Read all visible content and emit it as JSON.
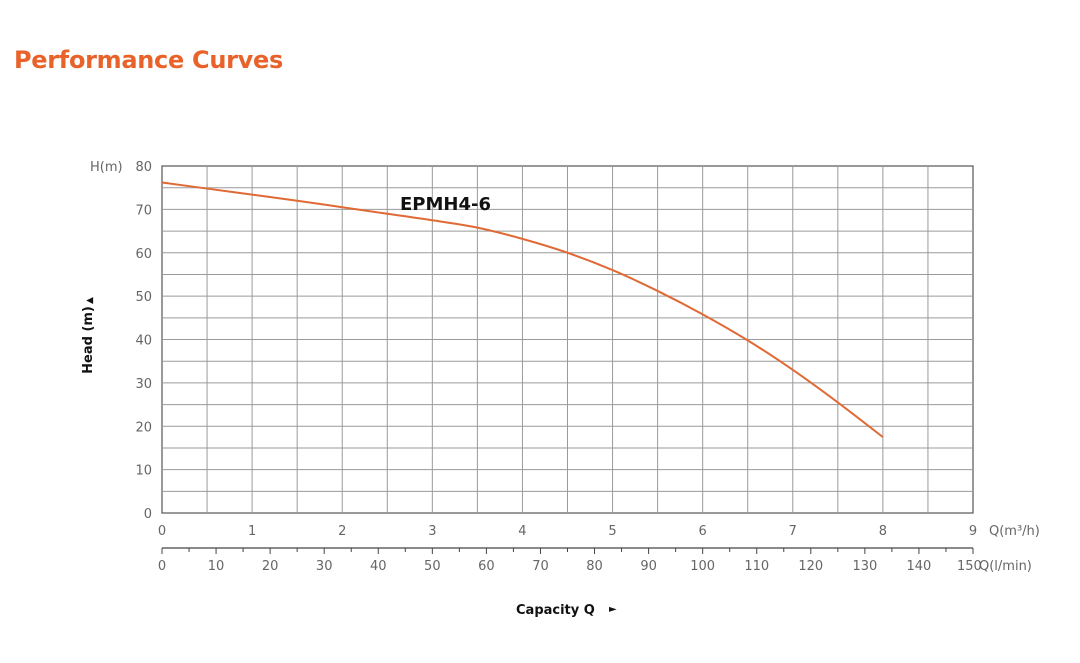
{
  "page": {
    "title": "Performance Curves"
  },
  "chart_data": {
    "type": "line",
    "ylabel": "Head (m)",
    "ylabel_arrow": "▲",
    "y_unit_label": "H(m)",
    "xlabel": "Capacity Q",
    "xlabel_arrow": "►",
    "x_unit_label": "Q(m³/h)",
    "x2_unit_label": "Q(l/min)",
    "xlim": [
      0,
      9
    ],
    "ylim": [
      0,
      80
    ],
    "x_ticks": [
      0,
      1,
      2,
      3,
      4,
      5,
      6,
      7,
      8,
      9
    ],
    "y_ticks": [
      0,
      10,
      20,
      30,
      40,
      50,
      60,
      70,
      80
    ],
    "x2_ticks": [
      0,
      10,
      20,
      30,
      40,
      50,
      60,
      70,
      80,
      90,
      100,
      110,
      120,
      130,
      140,
      150
    ],
    "grid": true,
    "series": [
      {
        "name": "EPMH4-6",
        "color": "#e06a35",
        "x": [
          0,
          0.5,
          1,
          1.5,
          2,
          2.5,
          3,
          3.5,
          4,
          4.5,
          5,
          5.5,
          6,
          6.5,
          7,
          7.5,
          8
        ],
        "y": [
          76.2,
          74.8,
          73.4,
          72.0,
          70.5,
          69.0,
          67.5,
          65.8,
          63.2,
          60.0,
          56.0,
          51.2,
          45.8,
          39.8,
          33.0,
          25.5,
          17.5
        ]
      }
    ]
  }
}
